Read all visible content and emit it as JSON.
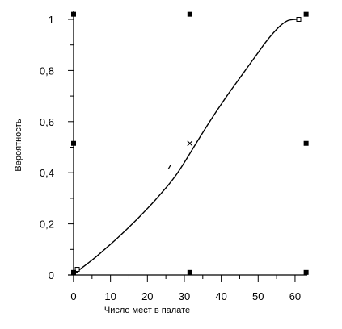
{
  "chart_data": {
    "type": "line",
    "xlabel": "Число мест в палате",
    "ylabel": "Вероятность",
    "xlim": [
      0,
      61
    ],
    "ylim": [
      0,
      1
    ],
    "x_ticks": [
      0,
      10,
      20,
      30,
      40,
      50,
      60
    ],
    "x_tick_labels": [
      "0",
      "10",
      "20",
      "30",
      "40",
      "50",
      "60"
    ],
    "y_ticks": [
      0,
      0.2,
      0.4,
      0.6,
      0.8,
      1
    ],
    "y_tick_labels": [
      "0",
      "0,2",
      "0,4",
      "0,6",
      "0,8",
      "1"
    ],
    "grid": false,
    "series": [
      {
        "x": [
          0,
          1,
          2,
          4,
          6,
          8,
          10,
          12,
          14,
          16,
          18,
          20,
          22,
          24,
          26,
          28,
          30,
          32,
          34,
          36,
          38,
          40,
          42,
          44,
          46,
          48,
          50,
          52,
          54,
          56,
          58,
          60,
          61
        ],
        "y": [
          0.005,
          0.012,
          0.025,
          0.047,
          0.07,
          0.095,
          0.12,
          0.146,
          0.173,
          0.201,
          0.23,
          0.26,
          0.291,
          0.324,
          0.358,
          0.396,
          0.44,
          0.487,
          0.534,
          0.58,
          0.625,
          0.668,
          0.71,
          0.75,
          0.79,
          0.83,
          0.87,
          0.91,
          0.945,
          0.975,
          0.995,
          1.0,
          1.0
        ],
        "color": "#000000"
      }
    ],
    "markers": [
      {
        "x": 1,
        "y": 0.022,
        "shape": "open-square"
      },
      {
        "x": 26,
        "y": 0.423,
        "shape": "tick"
      },
      {
        "x": 31.5,
        "y": 0.515,
        "shape": "cross"
      },
      {
        "x": 61,
        "y": 1.0,
        "shape": "open-square"
      }
    ],
    "handles": [
      {
        "x": 0,
        "y": 1.02
      },
      {
        "x": 31.5,
        "y": 1.02
      },
      {
        "x": 63,
        "y": 1.02
      },
      {
        "x": 0,
        "y": 0.515
      },
      {
        "x": 63,
        "y": 0.515
      },
      {
        "x": 0,
        "y": 0.01
      },
      {
        "x": 31.5,
        "y": 0.01
      },
      {
        "x": 63,
        "y": 0.01
      }
    ]
  }
}
